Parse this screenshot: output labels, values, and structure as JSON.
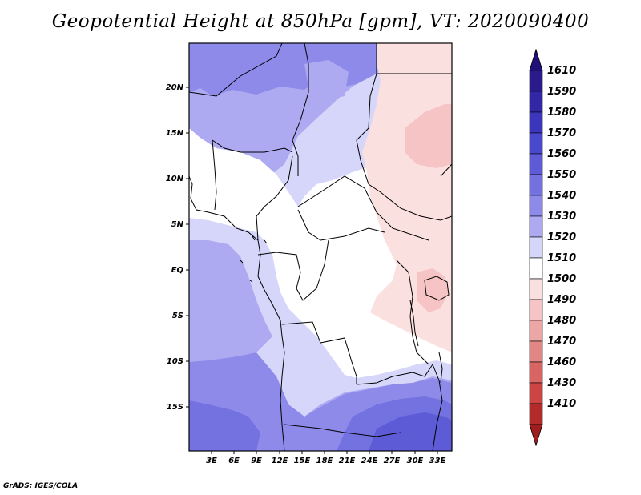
{
  "title": "Geopotential Height at 850hPa [gpm], VT: 2020090400",
  "credit": "GrADS: IGES/COLA",
  "map": {
    "lon_range": [
      0,
      35
    ],
    "lat_range": [
      -20,
      24
    ],
    "lat_ticks": [
      "20N",
      "15N",
      "10N",
      "5N",
      "EQ",
      "5S",
      "10S",
      "15S"
    ],
    "lon_ticks": [
      "3E",
      "6E",
      "9E",
      "12E",
      "15E",
      "18E",
      "21E",
      "24E",
      "27E",
      "30E",
      "33E"
    ]
  },
  "legend": {
    "levels": [
      {
        "label": "1610",
        "color": "#2a1a8c"
      },
      {
        "label": "1590",
        "color": "#3228a6"
      },
      {
        "label": "1580",
        "color": "#3b37bd"
      },
      {
        "label": "1570",
        "color": "#4a48cc"
      },
      {
        "label": "1560",
        "color": "#5e5bd6"
      },
      {
        "label": "1550",
        "color": "#7472e0"
      },
      {
        "label": "1540",
        "color": "#8e8aea"
      },
      {
        "label": "1530",
        "color": "#aeaaf2"
      },
      {
        "label": "1520",
        "color": "#d6d6fa"
      },
      {
        "label": "1510",
        "color": "#ffffff"
      },
      {
        "label": "1500",
        "color": "#fbe0e0"
      },
      {
        "label": "1490",
        "color": "#f6c4c4"
      },
      {
        "label": "1480",
        "color": "#eda6a6"
      },
      {
        "label": "1470",
        "color": "#e38686"
      },
      {
        "label": "1460",
        "color": "#d86464"
      },
      {
        "label": "1430",
        "color": "#cc4444"
      },
      {
        "label": "1410",
        "color": "#b32a2a"
      }
    ],
    "top_color": "#1e1078",
    "bottom_color": "#a01e1e"
  }
}
